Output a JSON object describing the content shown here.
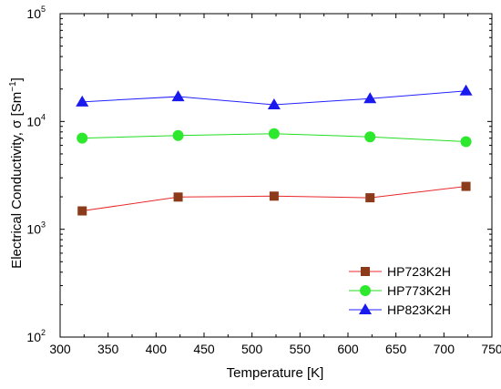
{
  "chart_data": {
    "type": "line",
    "xlabel": "Temperature [K]",
    "ylabel": {
      "main": "Electrical Conductivity, σ [Sm",
      "sup": "−1",
      "end": "]"
    },
    "xlim": [
      300,
      750
    ],
    "ylim": [
      100,
      100000
    ],
    "yscale": "log",
    "xticks": [
      300,
      350,
      400,
      450,
      500,
      550,
      600,
      650,
      700,
      750
    ],
    "yticks": [
      {
        "value": 100,
        "base": "10",
        "exp": "2"
      },
      {
        "value": 1000,
        "base": "10",
        "exp": "3"
      },
      {
        "value": 10000,
        "base": "10",
        "exp": "4"
      },
      {
        "value": 100000,
        "base": "10",
        "exp": "5"
      }
    ],
    "legend_position": "bottom-right",
    "x": [
      323,
      423,
      523,
      623,
      723
    ],
    "series": [
      {
        "name": "HP723K2H",
        "color": "#e8282a",
        "marker": "square",
        "marker_color": "#8b3a1a",
        "values": [
          1480,
          1990,
          2030,
          1960,
          2500
        ]
      },
      {
        "name": "HP773K2H",
        "color": "#22dd22",
        "marker": "circle",
        "marker_color": "#2ee82e",
        "values": [
          7000,
          7400,
          7700,
          7200,
          6500
        ]
      },
      {
        "name": "HP823K2H",
        "color": "#2222ff",
        "marker": "triangle",
        "marker_color": "#1a1aee",
        "values": [
          15200,
          17000,
          14300,
          16300,
          19200
        ]
      }
    ]
  }
}
